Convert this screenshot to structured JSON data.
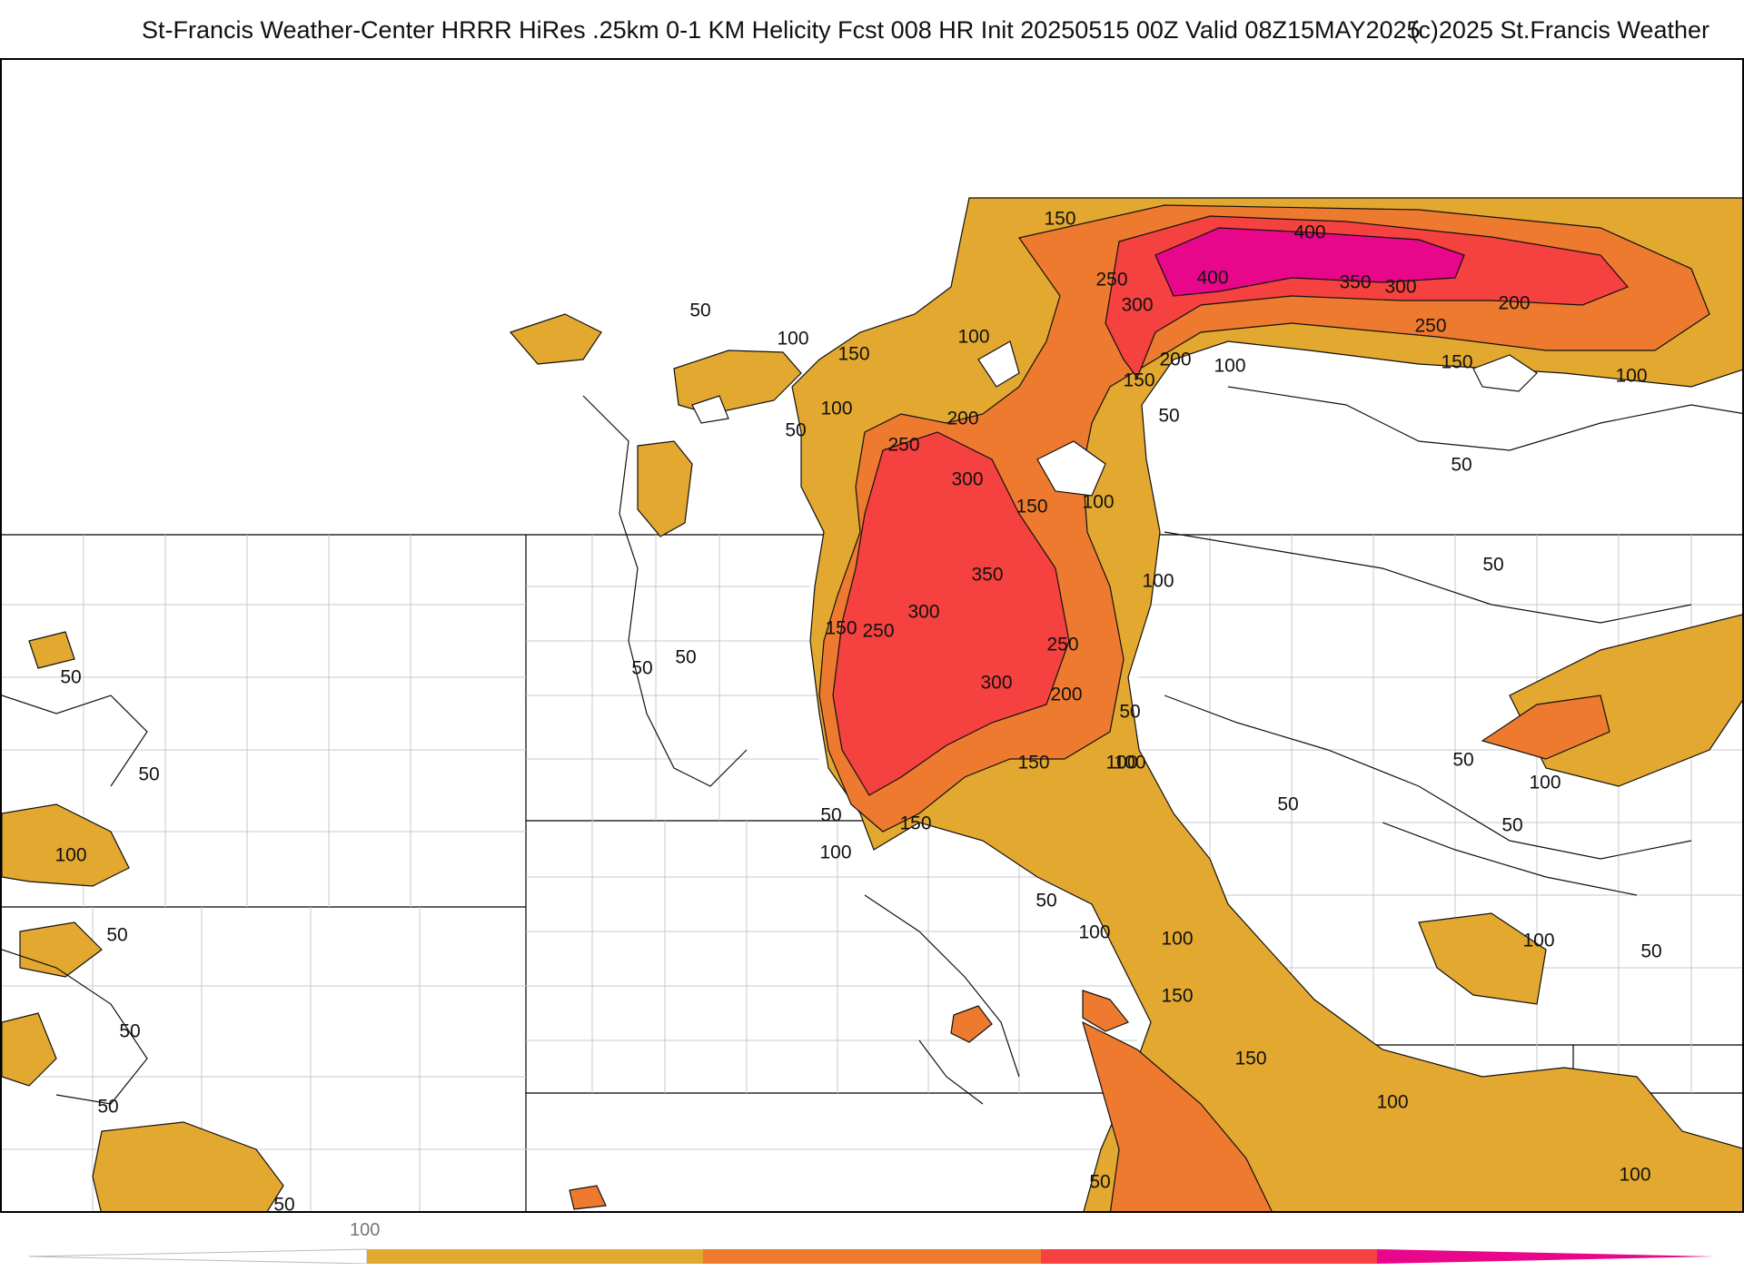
{
  "header": {
    "title": "St-Francis Weather-Center HRRR HiRes .25km 0-1 KM Helicity Fcst 008 HR Init 20250515 00Z  Valid 08Z15MAY2025",
    "copyright": "(c)2025 St.Francis Weather"
  },
  "map": {
    "field": "0-1 KM Helicity",
    "colors": {
      "c100": "#e3a82f",
      "c150": "#ee7a30",
      "c250": "#f5413f",
      "c400": "#e8068a",
      "contour": "#111111",
      "boundary": "#bfbfbf"
    },
    "contour_labels": [
      {
        "text": "150"
      },
      {
        "text": "400"
      },
      {
        "text": "250"
      },
      {
        "text": "400"
      },
      {
        "text": "350"
      },
      {
        "text": "300"
      },
      {
        "text": "300"
      },
      {
        "text": "200"
      },
      {
        "text": "250"
      },
      {
        "text": "150"
      },
      {
        "text": "100"
      },
      {
        "text": "100"
      },
      {
        "text": "50"
      },
      {
        "text": "100"
      },
      {
        "text": "150"
      },
      {
        "text": "200"
      },
      {
        "text": "150"
      },
      {
        "text": "100"
      },
      {
        "text": "50"
      },
      {
        "text": "100"
      },
      {
        "text": "50"
      },
      {
        "text": "250"
      },
      {
        "text": "200"
      },
      {
        "text": "300"
      },
      {
        "text": "150"
      },
      {
        "text": "100"
      },
      {
        "text": "50"
      },
      {
        "text": "100"
      },
      {
        "text": "350"
      },
      {
        "text": "300"
      },
      {
        "text": "250"
      },
      {
        "text": "150"
      },
      {
        "text": "250"
      },
      {
        "text": "50"
      },
      {
        "text": "50"
      },
      {
        "text": "300"
      },
      {
        "text": "200"
      },
      {
        "text": "50"
      },
      {
        "text": "150"
      },
      {
        "text": "100"
      },
      {
        "text": "50"
      },
      {
        "text": "100"
      },
      {
        "text": "50"
      },
      {
        "text": "50"
      },
      {
        "text": "50"
      },
      {
        "text": "150"
      },
      {
        "text": "100"
      },
      {
        "text": "50"
      },
      {
        "text": "100"
      },
      {
        "text": "100"
      },
      {
        "text": "150"
      },
      {
        "text": "100"
      },
      {
        "text": "50"
      },
      {
        "text": "100"
      },
      {
        "text": "150"
      },
      {
        "text": "100"
      },
      {
        "text": "50"
      },
      {
        "text": "100"
      },
      {
        "text": "50"
      },
      {
        "text": "50"
      },
      {
        "text": "100"
      },
      {
        "text": "50"
      },
      {
        "text": "50"
      },
      {
        "text": "50"
      },
      {
        "text": "50"
      },
      {
        "text": "50"
      }
    ]
  },
  "legend": {
    "tick_label": "100",
    "colors": [
      "#e3a82f",
      "#ee7a30",
      "#f5413f",
      "#e8068a"
    ]
  }
}
